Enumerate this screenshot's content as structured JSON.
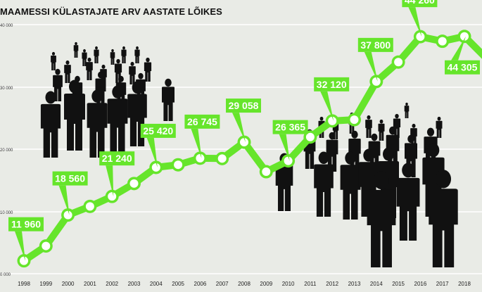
{
  "chart_data": {
    "type": "line",
    "title": "MAAMESSI KÜLASTAJATE ARV AASTATE LÕIKES",
    "ylim": [
      10000,
      46000
    ],
    "y_tick_labels": [
      "40 000",
      "30 000",
      "20 000",
      "10 000",
      "0 000"
    ],
    "x": [
      "1998",
      "1999",
      "2000",
      "2001",
      "2002",
      "2003",
      "2004",
      "2005",
      "2006",
      "2007",
      "2008",
      "2009",
      "2010",
      "2011",
      "2012",
      "2013",
      "2014",
      "2015",
      "2016",
      "2017",
      "2018"
    ],
    "series": [
      {
        "values": [
          11960,
          14100,
          18560,
          19800,
          21240,
          23100,
          25420,
          25800,
          26745,
          26700,
          29058,
          24800,
          26365,
          29800,
          32120,
          32300,
          37800,
          40600,
          44260,
          43600,
          44305
        ]
      }
    ],
    "data_labels": [
      {
        "index": 0,
        "text": "11 960"
      },
      {
        "index": 2,
        "text": "18 560"
      },
      {
        "index": 4,
        "text": "21 240"
      },
      {
        "index": 6,
        "text": "25 420"
      },
      {
        "index": 8,
        "text": "26 745"
      },
      {
        "index": 10,
        "text": "29 058"
      },
      {
        "index": 12,
        "text": "26 365"
      },
      {
        "index": 14,
        "text": "32 120"
      },
      {
        "index": 16,
        "text": "37 800"
      },
      {
        "index": 18,
        "text": "44 260"
      },
      {
        "index": 20,
        "text": "44 305"
      }
    ],
    "grid": true,
    "colors": {
      "line": "#66e52b",
      "label_bg": "#66e52b",
      "label_text": "#ffffff",
      "grid": "#ffffff",
      "figures": "#111111",
      "background": "#e9ebe6"
    }
  }
}
